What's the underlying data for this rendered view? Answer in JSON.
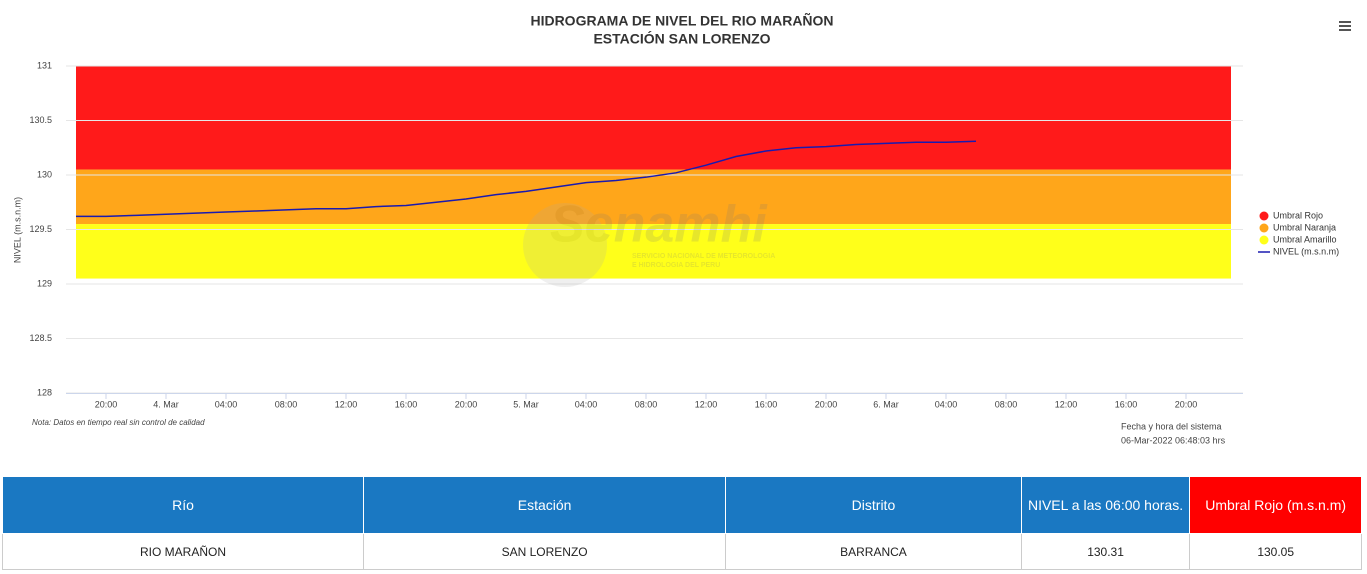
{
  "chart_data": {
    "type": "line",
    "title": "HIDROGRAMA DE NIVEL DEL RIO MARAÑON",
    "subtitle": "ESTACIÓN SAN LORENZO",
    "y_label": "NIVEL (m.s.n.m)",
    "x": [
      0,
      2,
      4,
      6,
      8,
      10,
      12,
      14,
      16,
      18,
      20,
      22,
      24,
      26,
      28,
      30,
      32,
      34,
      36,
      38,
      40,
      42,
      44,
      46,
      48,
      50,
      52,
      54,
      56,
      58,
      60
    ],
    "series": [
      {
        "name": "NIVEL (m.s.n.m)",
        "color": "#1a1ab0",
        "values": [
          129.62,
          129.62,
          129.63,
          129.64,
          129.65,
          129.66,
          129.67,
          129.68,
          129.69,
          129.69,
          129.71,
          129.72,
          129.75,
          129.78,
          129.82,
          129.85,
          129.89,
          129.93,
          129.95,
          129.98,
          130.02,
          130.09,
          130.17,
          130.22,
          130.25,
          130.26,
          130.28,
          130.29,
          130.3,
          130.3,
          130.31
        ]
      }
    ],
    "bands": [
      {
        "name": "Umbral Rojo",
        "color": "#ff1a1a",
        "from": 130.05,
        "to": 131
      },
      {
        "name": "Umbral Naranja",
        "color": "#ffa61a",
        "from": 129.55,
        "to": 130.05
      },
      {
        "name": "Umbral Amarillo",
        "color": "#ffff1a",
        "from": 129.05,
        "to": 129.55
      }
    ],
    "xlim": [
      0,
      77.8
    ],
    "xticks": [
      {
        "value": 2,
        "label": "20:00"
      },
      {
        "value": 6,
        "label": "4. Mar"
      },
      {
        "value": 10,
        "label": "04:00"
      },
      {
        "value": 14,
        "label": "08:00"
      },
      {
        "value": 18,
        "label": "12:00"
      },
      {
        "value": 22,
        "label": "16:00"
      },
      {
        "value": 26,
        "label": "20:00"
      },
      {
        "value": 30,
        "label": "5. Mar"
      },
      {
        "value": 34,
        "label": "04:00"
      },
      {
        "value": 38,
        "label": "08:00"
      },
      {
        "value": 42,
        "label": "12:00"
      },
      {
        "value": 46,
        "label": "16:00"
      },
      {
        "value": 50,
        "label": "20:00"
      },
      {
        "value": 54,
        "label": "6. Mar"
      },
      {
        "value": 58,
        "label": "04:00"
      },
      {
        "value": 62,
        "label": "08:00"
      },
      {
        "value": 66,
        "label": "12:00"
      },
      {
        "value": 70,
        "label": "16:00"
      },
      {
        "value": 74,
        "label": "20:00"
      }
    ],
    "ylim": [
      128,
      131
    ],
    "yticks": [
      128,
      128.5,
      129,
      129.5,
      130,
      130.5,
      131
    ],
    "grid": true,
    "legend": "right",
    "note": "Nota: Datos en tiempo real sin control de calidad",
    "system_time_label": "Fecha y hora del sistema",
    "system_time": "06-Mar-2022 06:48:03 hrs",
    "watermark": "Senamhi",
    "watermark_sub1": "SERVICIO NACIONAL DE METEOROLOGIA",
    "watermark_sub2": "E HIDROLOGIA DEL PERU"
  },
  "table": {
    "headers": [
      "Río",
      "Estación",
      "Distrito",
      "NIVEL a las 06:00 horas.",
      "Umbral Rojo (m.s.n.m)"
    ],
    "rows": [
      [
        "RIO MARAÑON",
        "SAN LORENZO",
        "BARRANCA",
        "130.31",
        "130.05"
      ]
    ]
  }
}
